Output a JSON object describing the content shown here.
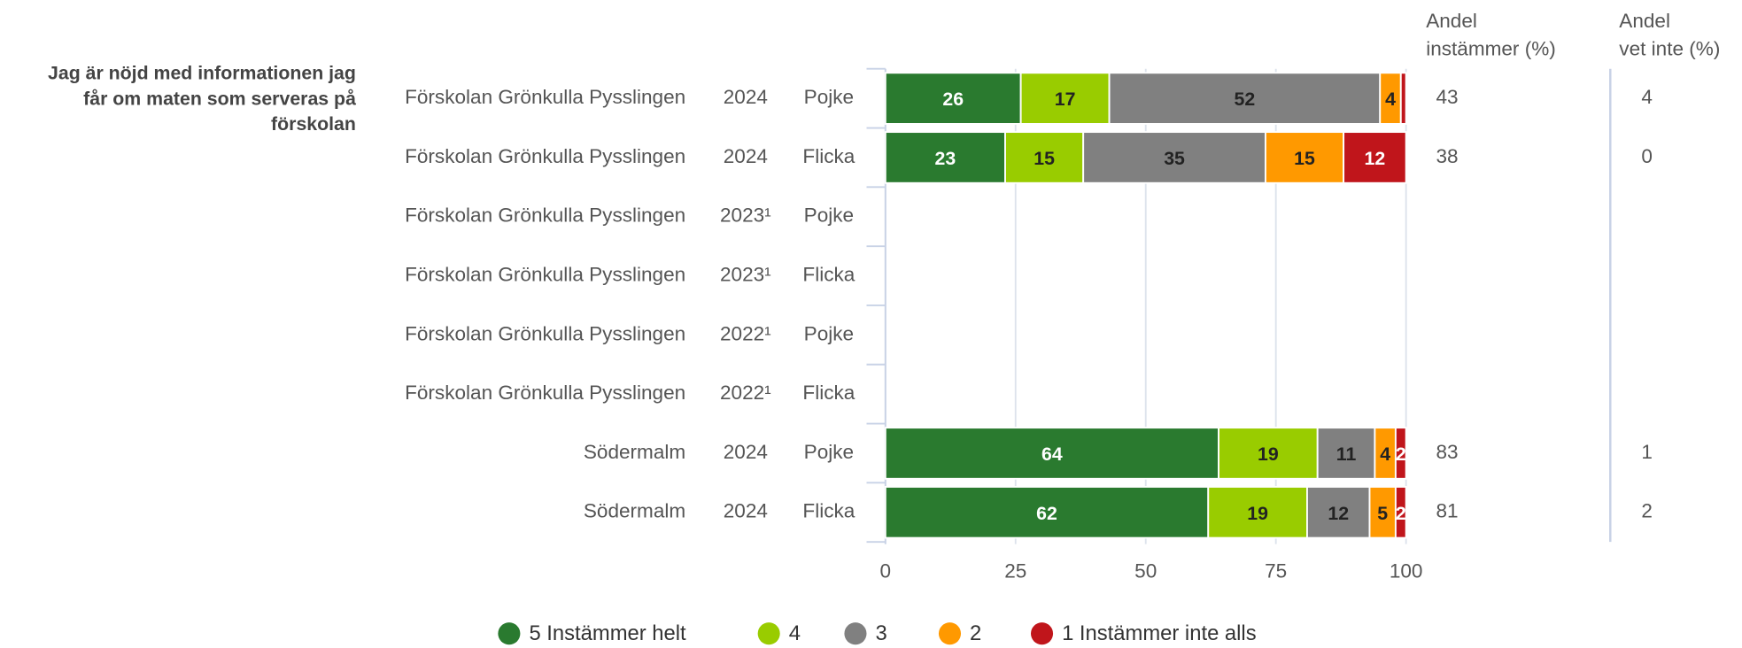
{
  "chart_data": {
    "type": "bar",
    "orientation": "horizontal",
    "stacked": true,
    "question": [
      "Jag är nöjd med informationen jag",
      "får om maten som serveras på",
      "förskolan"
    ],
    "rows": [
      {
        "unit": "Förskolan Grönkulla Pysslingen",
        "year": "2024",
        "gender": "Pojke"
      },
      {
        "unit": "Förskolan Grönkulla Pysslingen",
        "year": "2024",
        "gender": "Flicka"
      },
      {
        "unit": "Förskolan Grönkulla Pysslingen",
        "year": "2023¹",
        "gender": "Pojke"
      },
      {
        "unit": "Förskolan Grönkulla Pysslingen",
        "year": "2023¹",
        "gender": "Flicka"
      },
      {
        "unit": "Förskolan Grönkulla Pysslingen",
        "year": "2022¹",
        "gender": "Pojke"
      },
      {
        "unit": "Förskolan Grönkulla Pysslingen",
        "year": "2022¹",
        "gender": "Flicka"
      },
      {
        "unit": "Södermalm",
        "year": "2024",
        "gender": "Pojke"
      },
      {
        "unit": "Södermalm",
        "year": "2024",
        "gender": "Flicka"
      }
    ],
    "series": [
      {
        "name": "5 Instämmer helt",
        "color": "#2a7a2f",
        "label_color": "#ffffff",
        "values": [
          26,
          23,
          null,
          null,
          null,
          null,
          64,
          62
        ]
      },
      {
        "name": "4",
        "color": "#99cc00",
        "label_color": "#222222",
        "values": [
          17,
          15,
          null,
          null,
          null,
          null,
          19,
          19
        ]
      },
      {
        "name": "3",
        "color": "#808080",
        "label_color": "#222222",
        "values": [
          52,
          35,
          null,
          null,
          null,
          null,
          11,
          12
        ]
      },
      {
        "name": "2",
        "color": "#ff9900",
        "label_color": "#222222",
        "values": [
          4,
          15,
          null,
          null,
          null,
          null,
          4,
          5
        ]
      },
      {
        "name": "1 Instämmer inte alls",
        "color": "#c0151b",
        "label_color": "#ffffff",
        "values": [
          1,
          12,
          null,
          null,
          null,
          null,
          2,
          2
        ]
      }
    ],
    "xlim": [
      0,
      100
    ],
    "xticks": [
      0,
      25,
      50,
      75,
      100
    ],
    "grid": true,
    "extra_columns": [
      {
        "header": [
          "Andel",
          "instämmer (%)"
        ],
        "values": [
          43,
          38,
          null,
          null,
          null,
          null,
          83,
          81
        ]
      },
      {
        "header": [
          "Andel",
          "vet inte (%)"
        ],
        "values": [
          4,
          0,
          null,
          null,
          null,
          null,
          1,
          2
        ]
      }
    ],
    "legend": "bottom"
  }
}
